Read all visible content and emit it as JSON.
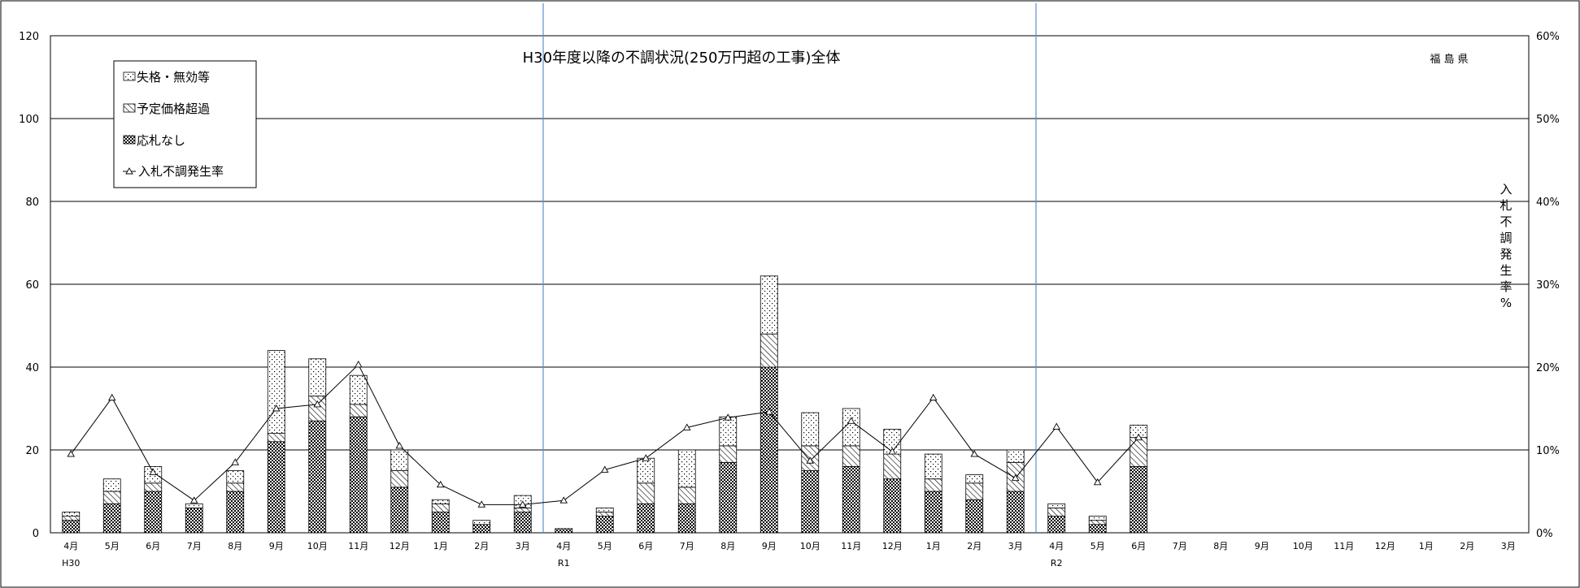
{
  "chart_data": {
    "type": "bar",
    "title": "H30年度以降の不調状況(250万円超の工事)全体",
    "region_note": "福 島 県",
    "y2label": "入札不調発生率%",
    "ylim": [
      0,
      120
    ],
    "y2lim": [
      0,
      60
    ],
    "yticks": [
      "0",
      "20",
      "40",
      "60",
      "80",
      "100",
      "120"
    ],
    "y2ticks": [
      "0%",
      "10%",
      "20%",
      "30%",
      "40%",
      "50%",
      "60%"
    ],
    "grid": true,
    "legend_position": "top-left",
    "categories": [
      "4月",
      "5月",
      "6月",
      "7月",
      "8月",
      "9月",
      "10月",
      "11月",
      "12月",
      "1月",
      "2月",
      "3月",
      "4月",
      "5月",
      "6月",
      "7月",
      "8月",
      "9月",
      "10月",
      "11月",
      "12月",
      "1月",
      "2月",
      "3月",
      "4月",
      "5月",
      "6月",
      "7月",
      "8月",
      "9月",
      "10月",
      "11月",
      "12月",
      "1月",
      "2月",
      "3月"
    ],
    "year_labels": [
      {
        "index": 0,
        "label": "H30"
      },
      {
        "index": 12,
        "label": "R1"
      },
      {
        "index": 24,
        "label": "R2"
      }
    ],
    "series": [
      {
        "name": "応札なし",
        "values": [
          3,
          7,
          10,
          6,
          10,
          22,
          27,
          28,
          11,
          5,
          2,
          5,
          1,
          4,
          7,
          7,
          17,
          40,
          15,
          16,
          13,
          10,
          8,
          10,
          4,
          2,
          16,
          0,
          0,
          0,
          0,
          0,
          0,
          0,
          0,
          0
        ]
      },
      {
        "name": "予定価格超過",
        "values": [
          1,
          3,
          2,
          0,
          2,
          2,
          6,
          3,
          4,
          2,
          0,
          1,
          0,
          1,
          5,
          4,
          4,
          8,
          6,
          5,
          6,
          3,
          4,
          7,
          2,
          1,
          7,
          0,
          0,
          0,
          0,
          0,
          0,
          0,
          0,
          0
        ]
      },
      {
        "name": "失格・無効等",
        "values": [
          1,
          3,
          4,
          1,
          3,
          20,
          9,
          7,
          5,
          1,
          1,
          3,
          0,
          1,
          6,
          9,
          7,
          14,
          8,
          9,
          6,
          6,
          2,
          3,
          1,
          1,
          3,
          0,
          0,
          0,
          0,
          0,
          0,
          0,
          0,
          0
        ]
      }
    ],
    "rate_series": {
      "name": "入札不調発生率",
      "values_percent": [
        9.5,
        16.3,
        7.3,
        3.9,
        8.5,
        15.0,
        15.5,
        20.3,
        10.5,
        5.8,
        3.4,
        3.4,
        3.9,
        7.6,
        9.0,
        12.7,
        13.9,
        14.6,
        8.7,
        13.5,
        9.8,
        16.3,
        9.5,
        6.6,
        12.8,
        6.1,
        11.5,
        null,
        null,
        null,
        null,
        null,
        null,
        null,
        null,
        null
      ]
    }
  },
  "legend": {
    "items": [
      {
        "label": "失格・無効等",
        "icon": "dotted-swatch-icon"
      },
      {
        "label": "予定価格超過",
        "icon": "hatched-swatch-icon"
      },
      {
        "label": "応札なし",
        "icon": "checker-swatch-icon"
      },
      {
        "label": "入札不調発生率",
        "icon": "triangle-line-icon"
      }
    ]
  }
}
